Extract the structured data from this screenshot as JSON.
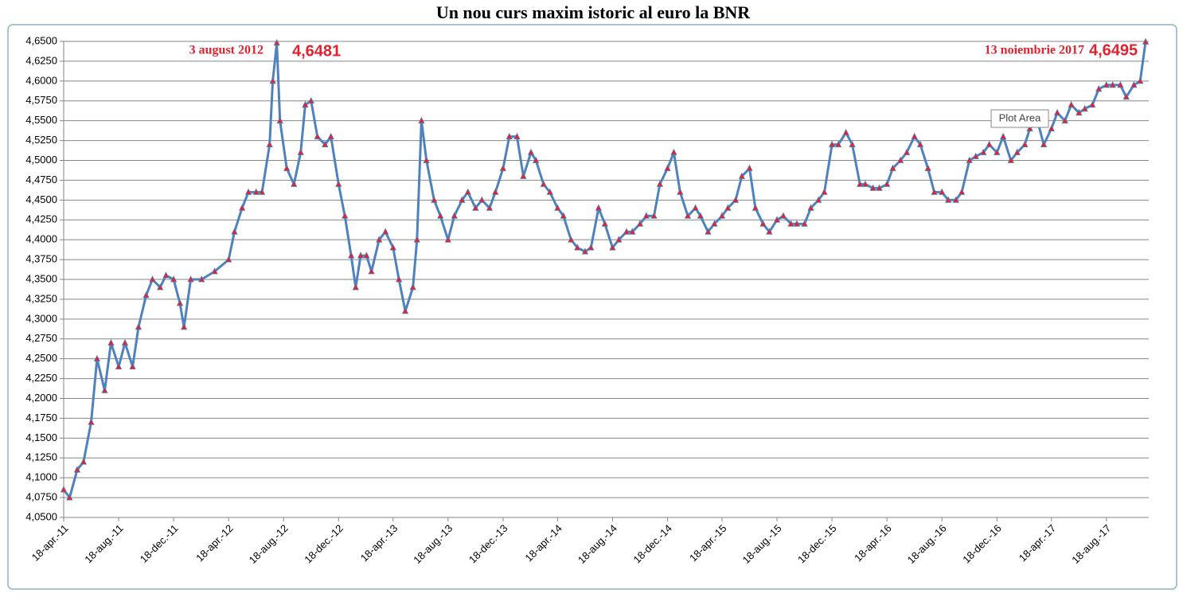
{
  "chart_data": {
    "type": "line",
    "title": "Un nou curs maxim istoric al euro la BNR",
    "color": "#4f81bd",
    "marker_color": "#e3222f",
    "grid": true,
    "x": [
      "2011-04-18",
      "2011-05-01",
      "2011-05-18",
      "2011-06-01",
      "2011-06-18",
      "2011-07-01",
      "2011-07-18",
      "2011-08-01",
      "2011-08-18",
      "2011-09-01",
      "2011-09-18",
      "2011-10-01",
      "2011-10-18",
      "2011-11-01",
      "2011-11-18",
      "2011-12-01",
      "2011-12-18",
      "2012-01-01",
      "2012-01-10",
      "2012-01-25",
      "2012-02-18",
      "2012-03-18",
      "2012-04-18",
      "2012-05-01",
      "2012-05-18",
      "2012-06-01",
      "2012-06-18",
      "2012-07-01",
      "2012-07-18",
      "2012-07-25",
      "2012-08-03",
      "2012-08-10",
      "2012-08-25",
      "2012-09-10",
      "2012-09-25",
      "2012-10-05",
      "2012-10-18",
      "2012-11-01",
      "2012-11-18",
      "2012-12-01",
      "2012-12-18",
      "2013-01-01",
      "2013-01-15",
      "2013-01-25",
      "2013-02-05",
      "2013-02-18",
      "2013-03-01",
      "2013-03-18",
      "2013-04-01",
      "2013-04-18",
      "2013-05-01",
      "2013-05-15",
      "2013-06-01",
      "2013-06-10",
      "2013-06-20",
      "2013-07-01",
      "2013-07-18",
      "2013-08-01",
      "2013-08-18",
      "2013-09-01",
      "2013-09-18",
      "2013-10-01",
      "2013-10-18",
      "2013-11-01",
      "2013-11-18",
      "2013-12-01",
      "2013-12-18",
      "2014-01-01",
      "2014-01-18",
      "2014-02-01",
      "2014-02-18",
      "2014-03-01",
      "2014-03-18",
      "2014-04-01",
      "2014-04-18",
      "2014-05-01",
      "2014-05-18",
      "2014-06-01",
      "2014-06-18",
      "2014-07-01",
      "2014-07-18",
      "2014-08-01",
      "2014-08-18",
      "2014-09-01",
      "2014-09-18",
      "2014-10-01",
      "2014-10-18",
      "2014-11-01",
      "2014-11-18",
      "2014-12-01",
      "2014-12-18",
      "2015-01-01",
      "2015-01-15",
      "2015-02-01",
      "2015-02-18",
      "2015-03-01",
      "2015-03-18",
      "2015-04-01",
      "2015-04-18",
      "2015-05-01",
      "2015-05-18",
      "2015-06-01",
      "2015-06-18",
      "2015-07-01",
      "2015-07-18",
      "2015-08-01",
      "2015-08-18",
      "2015-09-01",
      "2015-09-18",
      "2015-10-01",
      "2015-10-18",
      "2015-11-01",
      "2015-11-18",
      "2015-12-01",
      "2015-12-18",
      "2016-01-01",
      "2016-01-18",
      "2016-02-01",
      "2016-02-18",
      "2016-03-01",
      "2016-03-18",
      "2016-04-01",
      "2016-04-18",
      "2016-05-01",
      "2016-05-18",
      "2016-06-01",
      "2016-06-18",
      "2016-07-01",
      "2016-07-18",
      "2016-08-01",
      "2016-08-18",
      "2016-09-01",
      "2016-09-18",
      "2016-10-01",
      "2016-10-18",
      "2016-11-01",
      "2016-11-18",
      "2016-12-01",
      "2016-12-18",
      "2017-01-01",
      "2017-01-18",
      "2017-02-01",
      "2017-02-18",
      "2017-03-01",
      "2017-03-18",
      "2017-04-01",
      "2017-04-18",
      "2017-05-01",
      "2017-05-18",
      "2017-06-01",
      "2017-06-18",
      "2017-07-01",
      "2017-07-18",
      "2017-08-01",
      "2017-08-18",
      "2017-09-01",
      "2017-09-18",
      "2017-10-01",
      "2017-10-18",
      "2017-11-01",
      "2017-11-13"
    ],
    "values": [
      4.085,
      4.075,
      4.11,
      4.12,
      4.17,
      4.25,
      4.21,
      4.27,
      4.24,
      4.27,
      4.24,
      4.29,
      4.33,
      4.35,
      4.34,
      4.355,
      4.35,
      4.32,
      4.29,
      4.35,
      4.35,
      4.36,
      4.375,
      4.41,
      4.44,
      4.46,
      4.46,
      4.46,
      4.52,
      4.6,
      4.6481,
      4.55,
      4.49,
      4.47,
      4.51,
      4.57,
      4.575,
      4.53,
      4.52,
      4.53,
      4.47,
      4.43,
      4.38,
      4.34,
      4.38,
      4.38,
      4.36,
      4.4,
      4.41,
      4.39,
      4.35,
      4.31,
      4.34,
      4.4,
      4.55,
      4.5,
      4.45,
      4.43,
      4.4,
      4.43,
      4.45,
      4.46,
      4.44,
      4.45,
      4.44,
      4.46,
      4.49,
      4.53,
      4.53,
      4.48,
      4.51,
      4.5,
      4.47,
      4.46,
      4.44,
      4.43,
      4.4,
      4.39,
      4.385,
      4.39,
      4.44,
      4.42,
      4.39,
      4.4,
      4.41,
      4.41,
      4.42,
      4.43,
      4.43,
      4.47,
      4.49,
      4.51,
      4.46,
      4.43,
      4.44,
      4.43,
      4.41,
      4.42,
      4.43,
      4.44,
      4.45,
      4.48,
      4.49,
      4.44,
      4.42,
      4.41,
      4.425,
      4.43,
      4.42,
      4.42,
      4.42,
      4.44,
      4.45,
      4.46,
      4.52,
      4.52,
      4.535,
      4.52,
      4.47,
      4.47,
      4.465,
      4.465,
      4.47,
      4.49,
      4.5,
      4.51,
      4.53,
      4.52,
      4.49,
      4.46,
      4.46,
      4.45,
      4.45,
      4.46,
      4.5,
      4.505,
      4.51,
      4.52,
      4.51,
      4.53,
      4.5,
      4.51,
      4.52,
      4.54,
      4.55,
      4.52,
      4.54,
      4.56,
      4.55,
      4.57,
      4.56,
      4.565,
      4.57,
      4.59,
      4.595,
      4.595,
      4.595,
      4.58,
      4.595,
      4.6,
      4.6495
    ],
    "xlim": [
      "2011-04-18",
      "2017-11-20"
    ],
    "xticks": [
      {
        "value": "2011-04-18",
        "label": "18-apr.-11"
      },
      {
        "value": "2011-08-18",
        "label": "18-aug.-11"
      },
      {
        "value": "2011-12-18",
        "label": "18-dec.-11"
      },
      {
        "value": "2012-04-18",
        "label": "18-apr.-12"
      },
      {
        "value": "2012-08-18",
        "label": "18-aug.-12"
      },
      {
        "value": "2012-12-18",
        "label": "18-dec.-12"
      },
      {
        "value": "2013-04-18",
        "label": "18-apr.-13"
      },
      {
        "value": "2013-08-18",
        "label": "18-aug.-13"
      },
      {
        "value": "2013-12-18",
        "label": "18-dec.-13"
      },
      {
        "value": "2014-04-18",
        "label": "18-apr.-14"
      },
      {
        "value": "2014-08-18",
        "label": "18-aug.-14"
      },
      {
        "value": "2014-12-18",
        "label": "18-dec.-14"
      },
      {
        "value": "2015-04-18",
        "label": "18-apr.-15"
      },
      {
        "value": "2015-08-18",
        "label": "18-aug.-15"
      },
      {
        "value": "2015-12-18",
        "label": "18-dec.-15"
      },
      {
        "value": "2016-04-18",
        "label": "18-apr.-16"
      },
      {
        "value": "2016-08-18",
        "label": "18-aug.-16"
      },
      {
        "value": "2016-12-18",
        "label": "18-dec.-16"
      },
      {
        "value": "2017-04-18",
        "label": "18-apr.-17"
      },
      {
        "value": "2017-08-18",
        "label": "18-aug.-17"
      }
    ],
    "ylim": [
      4.05,
      4.65
    ],
    "yticks": [
      {
        "value": 4.05,
        "label": "4,0500"
      },
      {
        "value": 4.075,
        "label": "4,0750"
      },
      {
        "value": 4.1,
        "label": "4,1000"
      },
      {
        "value": 4.125,
        "label": "4,1250"
      },
      {
        "value": 4.15,
        "label": "4,1500"
      },
      {
        "value": 4.175,
        "label": "4,1750"
      },
      {
        "value": 4.2,
        "label": "4,2000"
      },
      {
        "value": 4.225,
        "label": "4,2250"
      },
      {
        "value": 4.25,
        "label": "4,2500"
      },
      {
        "value": 4.275,
        "label": "4,2750"
      },
      {
        "value": 4.3,
        "label": "4,3000"
      },
      {
        "value": 4.325,
        "label": "4,3250"
      },
      {
        "value": 4.35,
        "label": "4,3500"
      },
      {
        "value": 4.375,
        "label": "4,3750"
      },
      {
        "value": 4.4,
        "label": "4,4000"
      },
      {
        "value": 4.425,
        "label": "4,4250"
      },
      {
        "value": 4.45,
        "label": "4,4500"
      },
      {
        "value": 4.475,
        "label": "4,4750"
      },
      {
        "value": 4.5,
        "label": "4,5000"
      },
      {
        "value": 4.525,
        "label": "4,5250"
      },
      {
        "value": 4.55,
        "label": "4,5500"
      },
      {
        "value": 4.575,
        "label": "4,5750"
      },
      {
        "value": 4.6,
        "label": "4,6000"
      },
      {
        "value": 4.625,
        "label": "4,6250"
      },
      {
        "value": 4.65,
        "label": "4,6500"
      }
    ],
    "annotations": [
      {
        "text": "3 august 2012",
        "value_label": "4,6481"
      },
      {
        "text": "13 noiembrie 2017",
        "value_label": "4,6495"
      }
    ],
    "tooltip": "Plot Area"
  }
}
